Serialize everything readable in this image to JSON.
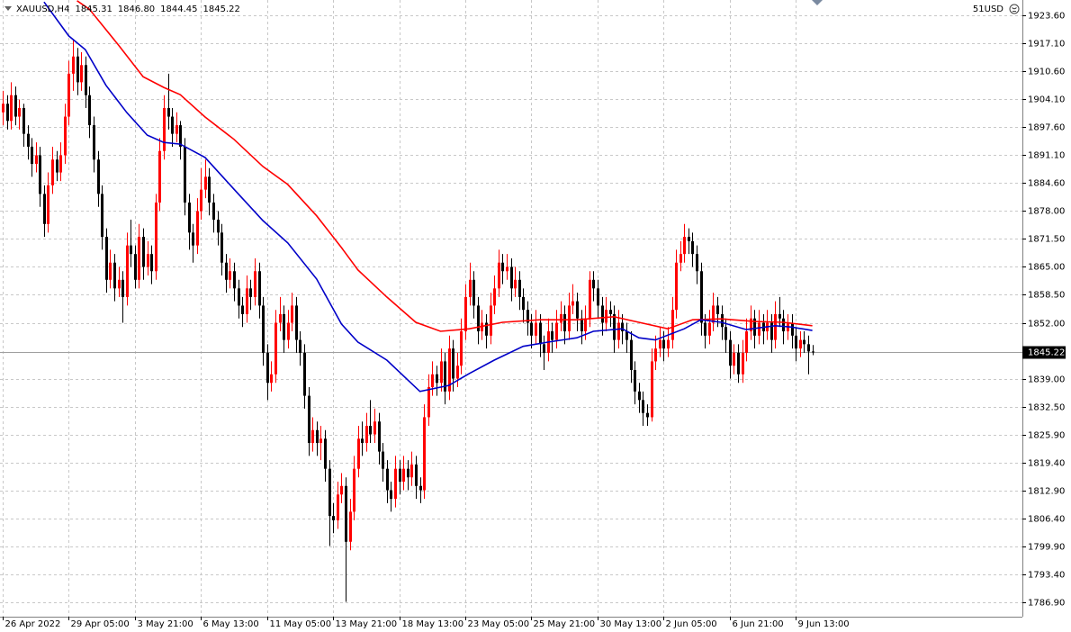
{
  "chart_data": {
    "type": "candlestick",
    "symbol": "XAUUSD,H4",
    "last_candle_labels": [
      "1845.31",
      "1846.80",
      "1844.45",
      "1845.22"
    ],
    "account": "51USD",
    "up_color": "#ff0000",
    "down_color": "#000000",
    "grid": true,
    "ylim": [
      1783.55,
      1927.16
    ],
    "yticks": [
      {
        "value": 1923.6,
        "label": "1923.60"
      },
      {
        "value": 1917.1,
        "label": "1917.10"
      },
      {
        "value": 1910.6,
        "label": "1910.60"
      },
      {
        "value": 1904.1,
        "label": "1904.10"
      },
      {
        "value": 1897.6,
        "label": "1897.60"
      },
      {
        "value": 1891.1,
        "label": "1891.10"
      },
      {
        "value": 1884.6,
        "label": "1884.60"
      },
      {
        "value": 1878,
        "label": "1878.00"
      },
      {
        "value": 1871.5,
        "label": "1871.50"
      },
      {
        "value": 1865,
        "label": "1865.00"
      },
      {
        "value": 1858.5,
        "label": "1858.50"
      },
      {
        "value": 1852,
        "label": "1852.00"
      },
      {
        "value": 1839,
        "label": "1839.00"
      },
      {
        "value": 1832.5,
        "label": "1832.50"
      },
      {
        "value": 1825.9,
        "label": "1825.90"
      },
      {
        "value": 1819.4,
        "label": "1819.40"
      },
      {
        "value": 1812.9,
        "label": "1812.90"
      },
      {
        "value": 1806.4,
        "label": "1806.40"
      },
      {
        "value": 1799.9,
        "label": "1799.90"
      },
      {
        "value": 1793.4,
        "label": "1793.40"
      },
      {
        "value": 1786.9,
        "label": "1786.90"
      }
    ],
    "current_price": {
      "value": 1845.22,
      "label": "1845.22"
    },
    "xlim": [
      -0.65,
      246.85
    ],
    "xticks": [
      {
        "value": 0,
        "label": "26 Apr 2022"
      },
      {
        "value": 16,
        "label": "29 Apr 05:00"
      },
      {
        "value": 32,
        "label": "3 May 21:00"
      },
      {
        "value": 48,
        "label": "6 May 13:00"
      },
      {
        "value": 64,
        "label": "11 May 05:00"
      },
      {
        "value": 80,
        "label": "13 May 21:00"
      },
      {
        "value": 96,
        "label": "18 May 13:00"
      },
      {
        "value": 112,
        "label": "23 May 05:00"
      },
      {
        "value": 128,
        "label": "25 May 21:00"
      },
      {
        "value": 144,
        "label": "30 May 13:00"
      },
      {
        "value": 160,
        "label": "2 Jun 05:00"
      },
      {
        "value": 176,
        "label": "6 Jun 21:00"
      },
      {
        "value": 192,
        "label": "9 Jun 13:00"
      }
    ],
    "candles": [
      [
        1901,
        1906,
        1898,
        1903
      ],
      [
        1903,
        1905,
        1897,
        1899
      ],
      [
        1899,
        1908,
        1897,
        1905
      ],
      [
        1905,
        1907,
        1898,
        1900
      ],
      [
        1900,
        1904,
        1897,
        1902
      ],
      [
        1902,
        1903,
        1893,
        1896
      ],
      [
        1896,
        1898,
        1890,
        1893
      ],
      [
        1893,
        1895,
        1886,
        1889
      ],
      [
        1889,
        1894,
        1887,
        1891
      ],
      [
        1891,
        1893,
        1879,
        1882
      ],
      [
        1882,
        1884,
        1872,
        1875
      ],
      [
        1875,
        1887,
        1873,
        1884
      ],
      [
        1884,
        1893,
        1882,
        1890
      ],
      [
        1890,
        1892,
        1885,
        1887
      ],
      [
        1887,
        1894,
        1885,
        1891
      ],
      [
        1891,
        1903,
        1889,
        1900
      ],
      [
        1900,
        1913,
        1898,
        1910
      ],
      [
        1910,
        1918,
        1906,
        1914
      ],
      [
        1914,
        1916,
        1905,
        1908
      ],
      [
        1908,
        1915,
        1906,
        1912
      ],
      [
        1912,
        1914,
        1902,
        1905
      ],
      [
        1905,
        1907,
        1895,
        1898
      ],
      [
        1898,
        1900,
        1887,
        1890
      ],
      [
        1890,
        1892,
        1879,
        1882
      ],
      [
        1882,
        1884,
        1869,
        1872
      ],
      [
        1872,
        1874,
        1859,
        1862
      ],
      [
        1862,
        1869,
        1860,
        1866
      ],
      [
        1866,
        1868,
        1857,
        1860
      ],
      [
        1860,
        1865,
        1858,
        1862
      ],
      [
        1862,
        1864,
        1852,
        1858
      ],
      [
        1858,
        1873,
        1856,
        1870
      ],
      [
        1870,
        1876,
        1865,
        1868
      ],
      [
        1868,
        1870,
        1860,
        1862
      ],
      [
        1862,
        1875,
        1860,
        1872
      ],
      [
        1872,
        1874,
        1862,
        1865
      ],
      [
        1865,
        1871,
        1863,
        1868
      ],
      [
        1868,
        1870,
        1861,
        1864
      ],
      [
        1864,
        1882,
        1862,
        1880
      ],
      [
        1880,
        1895,
        1878,
        1892
      ],
      [
        1892,
        1905,
        1890,
        1902
      ],
      [
        1902,
        1910,
        1897,
        1900
      ],
      [
        1900,
        1902,
        1893,
        1896
      ],
      [
        1896,
        1901,
        1894,
        1898
      ],
      [
        1898,
        1899,
        1890,
        1893
      ],
      [
        1893,
        1895,
        1877,
        1880
      ],
      [
        1880,
        1882,
        1869,
        1873
      ],
      [
        1873,
        1875,
        1866,
        1870
      ],
      [
        1870,
        1881,
        1868,
        1878
      ],
      [
        1878,
        1888,
        1876,
        1883
      ],
      [
        1883,
        1890,
        1881,
        1886
      ],
      [
        1886,
        1888,
        1877,
        1880
      ],
      [
        1880,
        1882,
        1873,
        1876
      ],
      [
        1876,
        1878,
        1870,
        1873
      ],
      [
        1873,
        1875,
        1863,
        1866
      ],
      [
        1866,
        1868,
        1859,
        1862
      ],
      [
        1862,
        1867,
        1860,
        1864
      ],
      [
        1864,
        1866,
        1857,
        1860
      ],
      [
        1860,
        1862,
        1853,
        1856
      ],
      [
        1856,
        1858,
        1851,
        1854
      ],
      [
        1854,
        1863,
        1852,
        1860
      ],
      [
        1860,
        1862,
        1855,
        1858
      ],
      [
        1858,
        1867,
        1856,
        1864
      ],
      [
        1864,
        1866,
        1853,
        1856
      ],
      [
        1856,
        1858,
        1842,
        1845
      ],
      [
        1845,
        1847,
        1834,
        1838
      ],
      [
        1838,
        1843,
        1836,
        1840
      ],
      [
        1840,
        1855,
        1838,
        1852
      ],
      [
        1852,
        1858,
        1850,
        1854
      ],
      [
        1854,
        1856,
        1845,
        1848
      ],
      [
        1848,
        1855,
        1846,
        1852
      ],
      [
        1852,
        1859,
        1850,
        1856
      ],
      [
        1856,
        1858,
        1845,
        1848
      ],
      [
        1848,
        1850,
        1842,
        1845
      ],
      [
        1845,
        1847,
        1832,
        1835
      ],
      [
        1835,
        1837,
        1821,
        1824
      ],
      [
        1824,
        1830,
        1822,
        1827
      ],
      [
        1827,
        1829,
        1821,
        1824
      ],
      [
        1824,
        1828,
        1820,
        1825
      ],
      [
        1825,
        1827,
        1815,
        1818
      ],
      [
        1818,
        1820,
        1800,
        1807
      ],
      [
        1807,
        1810,
        1803,
        1806
      ],
      [
        1806,
        1815,
        1804,
        1812
      ],
      [
        1812,
        1817,
        1810,
        1814
      ],
      [
        1814,
        1816,
        1787,
        1801
      ],
      [
        1801,
        1811,
        1799,
        1808
      ],
      [
        1808,
        1821,
        1806,
        1818
      ],
      [
        1818,
        1828,
        1816,
        1825
      ],
      [
        1825,
        1829,
        1821,
        1824
      ],
      [
        1824,
        1831,
        1822,
        1828
      ],
      [
        1828,
        1834,
        1824,
        1826
      ],
      [
        1826,
        1832,
        1824,
        1829
      ],
      [
        1829,
        1831,
        1819,
        1822
      ],
      [
        1822,
        1824,
        1815,
        1818
      ],
      [
        1818,
        1820,
        1810,
        1813
      ],
      [
        1813,
        1815,
        1808,
        1811
      ],
      [
        1811,
        1821,
        1809,
        1818
      ],
      [
        1818,
        1820,
        1812,
        1815
      ],
      [
        1815,
        1821,
        1813,
        1818
      ],
      [
        1818,
        1820,
        1813,
        1816
      ],
      [
        1816,
        1822,
        1814,
        1819
      ],
      [
        1819,
        1821,
        1811,
        1814
      ],
      [
        1814,
        1816,
        1810,
        1813
      ],
      [
        1813,
        1833,
        1811,
        1830
      ],
      [
        1830,
        1840,
        1828,
        1837
      ],
      [
        1837,
        1843,
        1835,
        1840
      ],
      [
        1840,
        1842,
        1835,
        1838
      ],
      [
        1838,
        1846,
        1836,
        1843
      ],
      [
        1843,
        1845,
        1833,
        1836
      ],
      [
        1836,
        1849,
        1834,
        1846
      ],
      [
        1846,
        1848,
        1836,
        1839
      ],
      [
        1839,
        1845,
        1837,
        1842
      ],
      [
        1842,
        1853,
        1840,
        1850
      ],
      [
        1850,
        1861,
        1848,
        1858
      ],
      [
        1858,
        1866,
        1856,
        1862
      ],
      [
        1862,
        1864,
        1853,
        1856
      ],
      [
        1856,
        1858,
        1847,
        1850
      ],
      [
        1850,
        1855,
        1848,
        1852
      ],
      [
        1852,
        1854,
        1846,
        1849
      ],
      [
        1849,
        1859,
        1847,
        1856
      ],
      [
        1856,
        1863,
        1854,
        1860
      ],
      [
        1860,
        1869,
        1858,
        1866
      ],
      [
        1866,
        1868,
        1861,
        1864
      ],
      [
        1864,
        1868,
        1862,
        1865
      ],
      [
        1865,
        1867,
        1857,
        1860
      ],
      [
        1860,
        1865,
        1858,
        1862
      ],
      [
        1862,
        1864,
        1855,
        1858
      ],
      [
        1858,
        1860,
        1852,
        1855
      ],
      [
        1855,
        1857,
        1849,
        1852
      ],
      [
        1852,
        1854,
        1846,
        1849
      ],
      [
        1849,
        1855,
        1847,
        1852
      ],
      [
        1852,
        1854,
        1844,
        1847
      ],
      [
        1847,
        1849,
        1841,
        1845
      ],
      [
        1845,
        1853,
        1843,
        1850
      ],
      [
        1850,
        1852,
        1845,
        1848
      ],
      [
        1848,
        1855,
        1846,
        1852
      ],
      [
        1852,
        1857,
        1850,
        1854
      ],
      [
        1854,
        1856,
        1847,
        1850
      ],
      [
        1850,
        1859,
        1848,
        1856
      ],
      [
        1856,
        1861,
        1854,
        1857
      ],
      [
        1857,
        1859,
        1850,
        1853
      ],
      [
        1853,
        1855,
        1847,
        1850
      ],
      [
        1850,
        1856,
        1848,
        1853
      ],
      [
        1853,
        1864,
        1851,
        1862
      ],
      [
        1862,
        1864,
        1857,
        1860
      ],
      [
        1860,
        1862,
        1853,
        1856
      ],
      [
        1856,
        1858,
        1849,
        1852
      ],
      [
        1852,
        1858,
        1850,
        1855
      ],
      [
        1855,
        1857,
        1851,
        1854
      ],
      [
        1854,
        1856,
        1845,
        1848
      ],
      [
        1848,
        1855,
        1846,
        1852
      ],
      [
        1852,
        1854,
        1847,
        1850
      ],
      [
        1850,
        1852,
        1845,
        1848
      ],
      [
        1848,
        1850,
        1838,
        1841
      ],
      [
        1841,
        1843,
        1833,
        1836
      ],
      [
        1836,
        1838,
        1831,
        1834
      ],
      [
        1834,
        1836,
        1828,
        1831
      ],
      [
        1831,
        1833,
        1828,
        1830
      ],
      [
        1830,
        1846,
        1829,
        1843
      ],
      [
        1843,
        1849,
        1841,
        1846
      ],
      [
        1846,
        1851,
        1844,
        1848
      ],
      [
        1848,
        1850,
        1843,
        1846
      ],
      [
        1846,
        1851,
        1844,
        1848
      ],
      [
        1848,
        1858,
        1846,
        1855
      ],
      [
        1855,
        1869,
        1853,
        1866
      ],
      [
        1866,
        1871,
        1864,
        1868
      ],
      [
        1868,
        1875,
        1866,
        1872
      ],
      [
        1872,
        1874,
        1868,
        1871
      ],
      [
        1871,
        1873,
        1865,
        1868
      ],
      [
        1868,
        1870,
        1861,
        1864
      ],
      [
        1864,
        1866,
        1849,
        1852
      ],
      [
        1852,
        1854,
        1846,
        1849
      ],
      [
        1849,
        1855,
        1847,
        1852
      ],
      [
        1852,
        1859,
        1850,
        1856
      ],
      [
        1856,
        1858,
        1851,
        1854
      ],
      [
        1854,
        1856,
        1848,
        1851
      ],
      [
        1851,
        1853,
        1845,
        1848
      ],
      [
        1848,
        1850,
        1839,
        1842
      ],
      [
        1842,
        1847,
        1840,
        1845
      ],
      [
        1845,
        1847,
        1838,
        1840
      ],
      [
        1840,
        1848,
        1838,
        1845
      ],
      [
        1845,
        1853,
        1843,
        1850
      ],
      [
        1850,
        1856,
        1848,
        1853
      ],
      [
        1853,
        1855,
        1846,
        1849
      ],
      [
        1849,
        1855,
        1847,
        1852
      ],
      [
        1852,
        1854,
        1847,
        1850
      ],
      [
        1850,
        1855,
        1848,
        1852
      ],
      [
        1852,
        1854,
        1845,
        1848
      ],
      [
        1848,
        1857,
        1846,
        1854
      ],
      [
        1854,
        1858,
        1851,
        1853
      ],
      [
        1853,
        1855,
        1847,
        1850
      ],
      [
        1850,
        1854,
        1848,
        1852
      ],
      [
        1852,
        1854,
        1846,
        1849
      ],
      [
        1849,
        1851,
        1843,
        1846
      ],
      [
        1846,
        1850,
        1844,
        1848
      ],
      [
        1848,
        1850,
        1845,
        1847
      ],
      [
        1847,
        1849,
        1840,
        1845.31
      ],
      [
        1845.31,
        1846.8,
        1844.45,
        1845.22
      ]
    ],
    "series": [
      {
        "color": "#ff0000",
        "x": [
          18,
          21,
          28,
          34,
          39,
          43,
          49,
          56,
          63,
          69,
          76,
          82,
          86,
          93,
          100,
          106,
          113,
          121,
          130,
          139,
          148,
          154,
          161,
          167,
          174,
          182,
          189,
          196
        ],
        "values": [
          1927,
          1925,
          1916.7,
          1909.3,
          1906.8,
          1905.1,
          1899.9,
          1894.7,
          1888.4,
          1884.2,
          1876.9,
          1869.5,
          1864.3,
          1858,
          1852.1,
          1850,
          1850.6,
          1852.1,
          1852.7,
          1852.7,
          1853.4,
          1852.1,
          1850.6,
          1852.7,
          1852.9,
          1852.3,
          1852.1,
          1851.3
        ]
      },
      {
        "color": "#0000c8",
        "x": [
          10,
          16,
          20,
          25,
          30,
          35,
          39,
          43,
          49,
          56,
          63,
          69,
          76,
          82,
          86,
          93,
          101,
          108,
          113,
          119,
          126,
          132,
          139,
          143,
          150,
          154,
          158,
          165,
          169,
          174,
          180,
          187,
          191,
          196
        ],
        "values": [
          1926.7,
          1918.8,
          1915.6,
          1907.3,
          1901,
          1895.7,
          1894,
          1893.6,
          1890.5,
          1883.1,
          1875.8,
          1870.6,
          1862.2,
          1851.7,
          1847.5,
          1843.3,
          1836,
          1837.4,
          1840.2,
          1843.3,
          1846.5,
          1847.5,
          1848.5,
          1850,
          1850.6,
          1848.5,
          1848,
          1850.6,
          1852.7,
          1852.1,
          1850.4,
          1851.3,
          1851,
          1850.2
        ]
      }
    ]
  }
}
